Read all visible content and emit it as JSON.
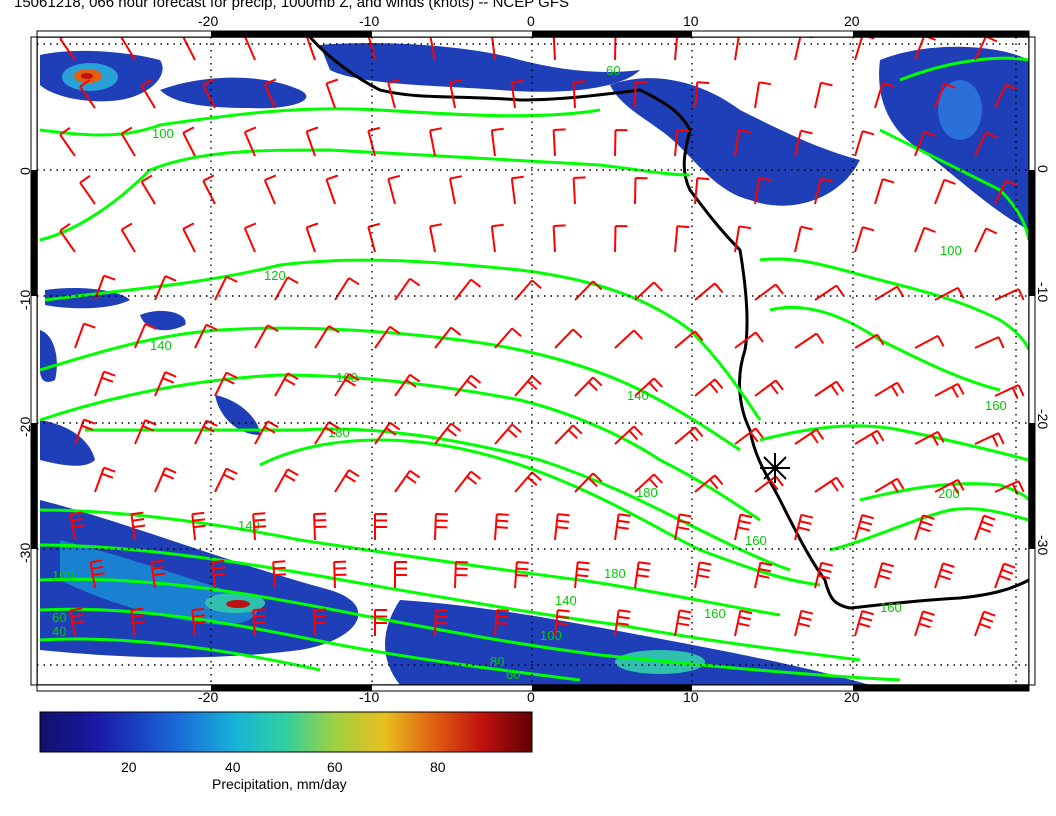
{
  "title": "15061218, 066 hour forecast for precip, 1000mb Z, and winds (knots) -- NCEP GFS",
  "map": {
    "lon_range": [
      -30,
      30
    ],
    "lat_range": [
      -40,
      10
    ],
    "lon_ticks": [
      "-20",
      "-10",
      "0",
      "10",
      "20"
    ],
    "lat_ticks": [
      "0",
      "-10",
      "-20",
      "-30"
    ],
    "contour_labels": [
      "100",
      "120",
      "140",
      "160",
      "180",
      "200",
      "80",
      "60",
      "40"
    ],
    "marker_position": {
      "lon": 15,
      "lat": -24
    }
  },
  "colorbar": {
    "label": "Precipitation, mm/day",
    "ticks": [
      "20",
      "40",
      "60",
      "80"
    ]
  },
  "colors": {
    "contour": "#00ff00",
    "wind_barb": "#ff0000",
    "coastline": "#000000",
    "precip_low": "#0a0a8c",
    "precip_high": "#8b0000"
  }
}
